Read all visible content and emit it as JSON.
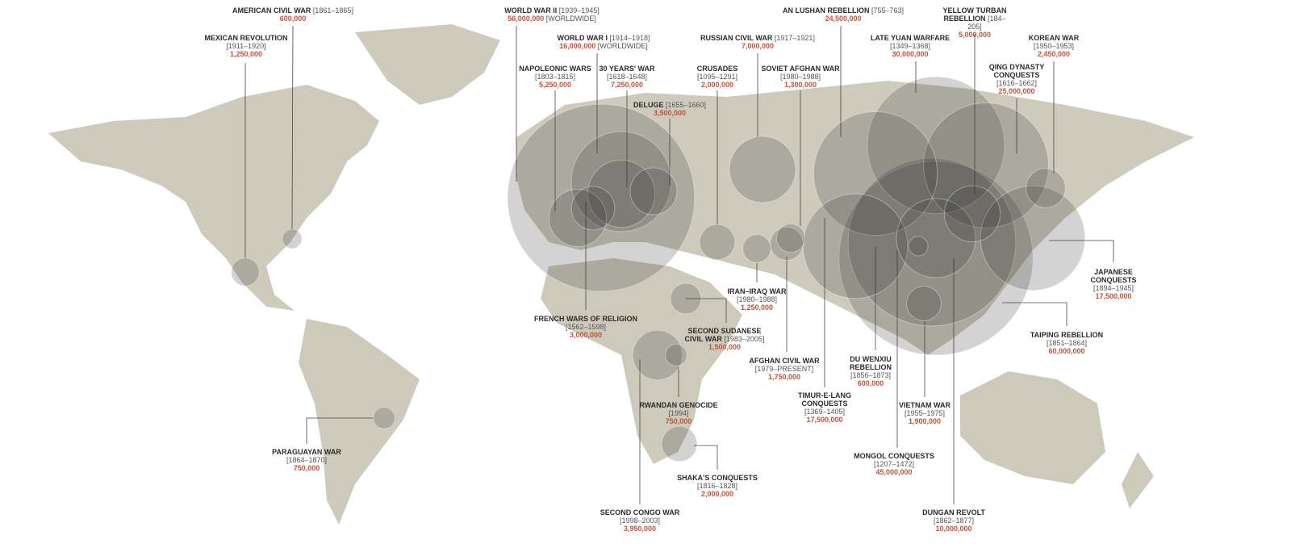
{
  "wars": [
    {
      "name": "AMERICAN CIVIL WAR",
      "years": "[1861–1865]",
      "deaths": 600000,
      "deaths_label": "600,000"
    },
    {
      "name": "MEXICAN REVOLUTION",
      "years": "[1911–1920]",
      "deaths": 1250000,
      "deaths_label": "1,250,000"
    },
    {
      "name": "WORLD WAR II",
      "years": "[1939–1945]",
      "deaths": 56000000,
      "deaths_label": "56,000,000",
      "note": "[WORLDWIDE]"
    },
    {
      "name": "WORLD WAR I",
      "years": "[1914–1918]",
      "deaths": 16000000,
      "deaths_label": "16,000,000",
      "note": "[WORLDWIDE]"
    },
    {
      "name": "NAPOLEONIC WARS",
      "years": "[1803–1815]",
      "deaths": 5250000,
      "deaths_label": "5,250,000"
    },
    {
      "name": "30 YEARS' WAR",
      "years": "[1618–1648]",
      "deaths": 7250000,
      "deaths_label": "7,250,000"
    },
    {
      "name": "DELUGE",
      "years": "[1655–1660]",
      "deaths": 3500000,
      "deaths_label": "3,500,000"
    },
    {
      "name": "CRUSADES",
      "years": "[1095–1291]",
      "deaths": 2000000,
      "deaths_label": "2,000,000"
    },
    {
      "name": "RUSSIAN CIVIL WAR",
      "years": "[1917–1921]",
      "deaths": 7000000,
      "deaths_label": "7,000,000"
    },
    {
      "name": "SOVIET AFGHAN WAR",
      "years": "[1980–1988]",
      "deaths": 1300000,
      "deaths_label": "1,300,000"
    },
    {
      "name": "AN LUSHAN REBELLION",
      "years": "[755–763]",
      "deaths": 24500000,
      "deaths_label": "24,500,000"
    },
    {
      "name": "YELLOW TURBAN REBELLION",
      "years": "[184–205]",
      "deaths": 5000000,
      "deaths_label": "5,000,000"
    },
    {
      "name": "LATE YUAN WARFARE",
      "years": "[1349–1368]",
      "deaths": 30000000,
      "deaths_label": "30,000,000"
    },
    {
      "name": "KOREAN WAR",
      "years": "[1950–1953]",
      "deaths": 2450000,
      "deaths_label": "2,450,000"
    },
    {
      "name": "QING DYNASTY CONQUESTS",
      "years": "[1616–1662]",
      "deaths": 25000000,
      "deaths_label": "25,000,000"
    },
    {
      "name": "JAPANESE CONQUESTS",
      "years": "[1894–1945]",
      "deaths": 17500000,
      "deaths_label": "17,500,000"
    },
    {
      "name": "TAIPING REBELLION",
      "years": "[1851–1864]",
      "deaths": 60000000,
      "deaths_label": "60,000,000"
    },
    {
      "name": "IRAN–IRAQ WAR",
      "years": "[1980–1988]",
      "deaths": 1250000,
      "deaths_label": "1,250,000"
    },
    {
      "name": "AFGHAN CIVIL WAR",
      "years": "[1979–PRESENT]",
      "deaths": 1750000,
      "deaths_label": "1,750,000"
    },
    {
      "name": "SECOND SUDANESE CIVIL WAR",
      "years": "[1983–2005]",
      "deaths": 1500000,
      "deaths_label": "1,500,000"
    },
    {
      "name": "FRENCH WARS OF RELIGION",
      "years": "[1562–1598]",
      "deaths": 3000000,
      "deaths_label": "3,000,000"
    },
    {
      "name": "TIMUR-E-LANG CONQUESTS",
      "years": "[1369–1405]",
      "deaths": 17500000,
      "deaths_label": "17,500,000"
    },
    {
      "name": "DU WENXIU REBELLION",
      "years": "[1856–1873]",
      "deaths": 600000,
      "deaths_label": "600,000"
    },
    {
      "name": "MONGOL CONQUESTS",
      "years": "[1207–1472]",
      "deaths": 45000000,
      "deaths_label": "45,000,000"
    },
    {
      "name": "VIETNAM WAR",
      "years": "[1955–1975]",
      "deaths": 1900000,
      "deaths_label": "1,900,000"
    },
    {
      "name": "DUNGAN REVOLT",
      "years": "[1862–1877]",
      "deaths": 10000000,
      "deaths_label": "10,000,000"
    },
    {
      "name": "RWANDAN GENOCIDE",
      "years": "[1994]",
      "deaths": 750000,
      "deaths_label": "750,000"
    },
    {
      "name": "SECOND CONGO WAR",
      "years": "[1998–2003]",
      "deaths": 3950000,
      "deaths_label": "3,950,000"
    },
    {
      "name": "SHAKA'S CONQUESTS",
      "years": "[1816–1828]",
      "deaths": 2000000,
      "deaths_label": "2,000,000"
    },
    {
      "name": "PARAGUAYAN WAR",
      "years": "[1864–1870]",
      "deaths": 750000,
      "deaths_label": "750,000"
    }
  ]
}
